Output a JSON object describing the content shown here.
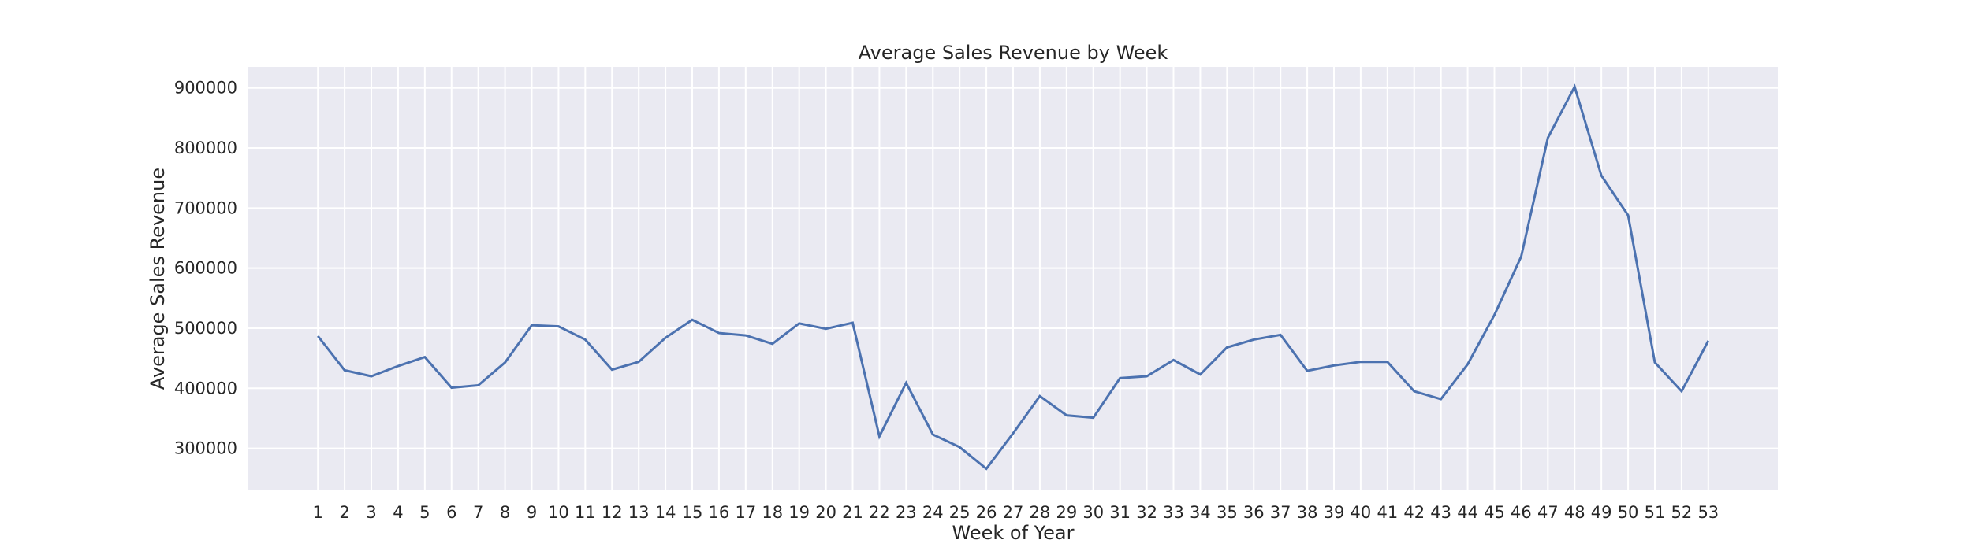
{
  "chart_data": {
    "type": "line",
    "title": "Average Sales Revenue by Week",
    "xlabel": "Week of Year",
    "ylabel": "Average Sales Revenue",
    "ylim": [
      230000,
      935000
    ],
    "yticks": [
      300000,
      400000,
      500000,
      600000,
      700000,
      800000,
      900000
    ],
    "grid": true,
    "background": "#eaeaf2",
    "line_color": "#4c72b0",
    "x": [
      1,
      2,
      3,
      4,
      5,
      6,
      7,
      8,
      9,
      10,
      11,
      12,
      13,
      14,
      15,
      16,
      17,
      18,
      19,
      20,
      21,
      22,
      23,
      24,
      25,
      26,
      27,
      28,
      29,
      30,
      31,
      32,
      33,
      34,
      35,
      36,
      37,
      38,
      39,
      40,
      41,
      42,
      43,
      44,
      45,
      46,
      47,
      48,
      49,
      50,
      51,
      52,
      53
    ],
    "series": [
      {
        "values": [
          487000,
          430000,
          420000,
          437000,
          452000,
          401000,
          405000,
          443000,
          505000,
          503000,
          481000,
          431000,
          444000,
          484000,
          514000,
          492000,
          488000,
          474000,
          508000,
          499000,
          509000,
          320000,
          409000,
          323000,
          302000,
          266000,
          325000,
          387000,
          355000,
          351000,
          417000,
          420000,
          447000,
          423000,
          468000,
          481000,
          489000,
          429000,
          438000,
          444000,
          444000,
          395000,
          382000,
          440000,
          522000,
          619000,
          817000,
          902000,
          754000,
          688000,
          443000,
          395000,
          479000
        ]
      }
    ]
  }
}
